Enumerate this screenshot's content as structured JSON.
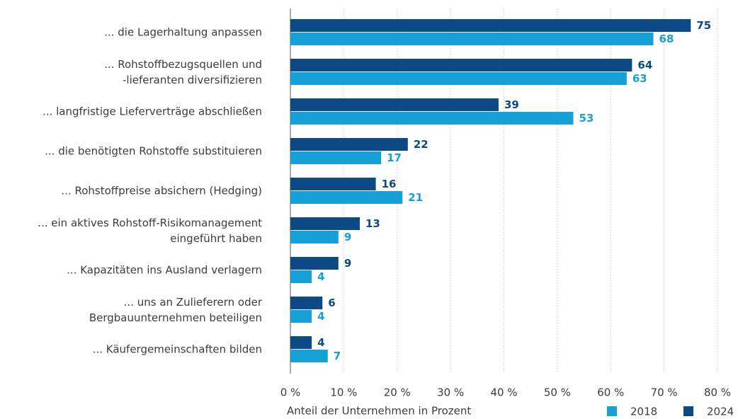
{
  "chart_data": {
    "type": "hbar",
    "categories": [
      "... die Lagerhaltung anpassen",
      "... Rohstoffbezugsquellen und\n-lieferanten diversifizieren",
      "... langfristige Lieferverträge abschließen",
      "... die benötigten Rohstoffe substituieren",
      "... Rohstoffpreise absichern (Hedging)",
      "... ein aktives Rohstoff-Risikomanagement\neingeführt haben",
      "... Kapazitäten ins Ausland verlagern",
      "... uns an Zulieferern oder\nBergbauunternehmen beteiligen",
      "... Käufergemeinschaften bilden"
    ],
    "series": [
      {
        "name": "2018",
        "color": "#17a0d7",
        "values": [
          68,
          63,
          53,
          17,
          21,
          9,
          4,
          4,
          7
        ]
      },
      {
        "name": "2024",
        "color": "#0c4a85",
        "values": [
          75,
          64,
          39,
          22,
          16,
          13,
          9,
          6,
          4
        ]
      }
    ],
    "xlabel": "Anteil der Unternehmen in Prozent",
    "xlim": [
      0,
      80
    ],
    "xticks": [
      {
        "value": 0,
        "label": "0 %"
      },
      {
        "value": 10,
        "label": "10 %"
      },
      {
        "value": 20,
        "label": "20 %"
      },
      {
        "value": 30,
        "label": "30 %"
      },
      {
        "value": 40,
        "label": "40 %"
      },
      {
        "value": 50,
        "label": "50 %"
      },
      {
        "value": 60,
        "label": "60 %"
      },
      {
        "value": 70,
        "label": "70 %"
      },
      {
        "value": 80,
        "label": "80 %"
      }
    ],
    "grid": true,
    "legend": "bottom-right"
  }
}
